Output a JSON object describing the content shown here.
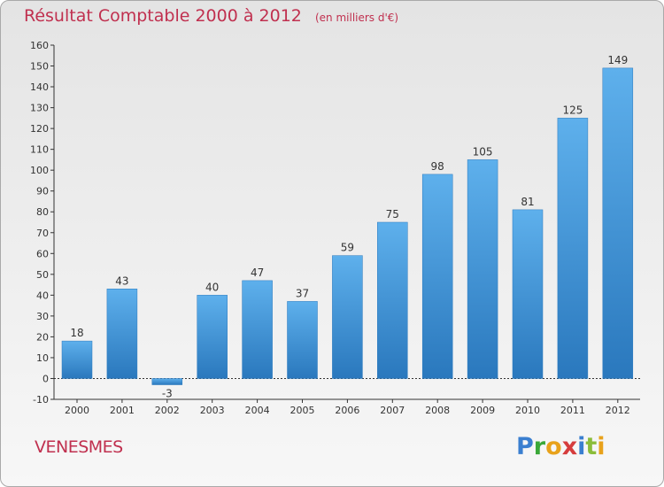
{
  "chart_data": {
    "type": "bar",
    "title": "Résultat Comptable 2000 à 2012",
    "subtitle": "(en milliers d'€)",
    "categories": [
      "2000",
      "2001",
      "2002",
      "2003",
      "2004",
      "2005",
      "2006",
      "2007",
      "2008",
      "2009",
      "2010",
      "2011",
      "2012"
    ],
    "values": [
      18,
      43,
      -3,
      40,
      47,
      37,
      59,
      75,
      98,
      105,
      81,
      125,
      149
    ],
    "ylim": [
      -10,
      160
    ],
    "yticks": [
      -10,
      0,
      10,
      20,
      30,
      40,
      50,
      60,
      70,
      80,
      90,
      100,
      110,
      120,
      130,
      140,
      150,
      160
    ],
    "grid": false,
    "bar_color": "#3b8fd8",
    "bar_color_light": "#5eb0ec",
    "bar_color_dark": "#2a78bd"
  },
  "commune": "VENESMES",
  "logo": {
    "letters": [
      "P",
      "r",
      "o",
      "x",
      "i",
      "t",
      "i"
    ],
    "colors": [
      "#3a7fd0",
      "#3aa838",
      "#e8a21b",
      "#d63d3d",
      "#3a7fd0",
      "#8bbd3a",
      "#e8a21b"
    ]
  },
  "colors": {
    "title": "#c0304f",
    "axis": "#333333"
  }
}
